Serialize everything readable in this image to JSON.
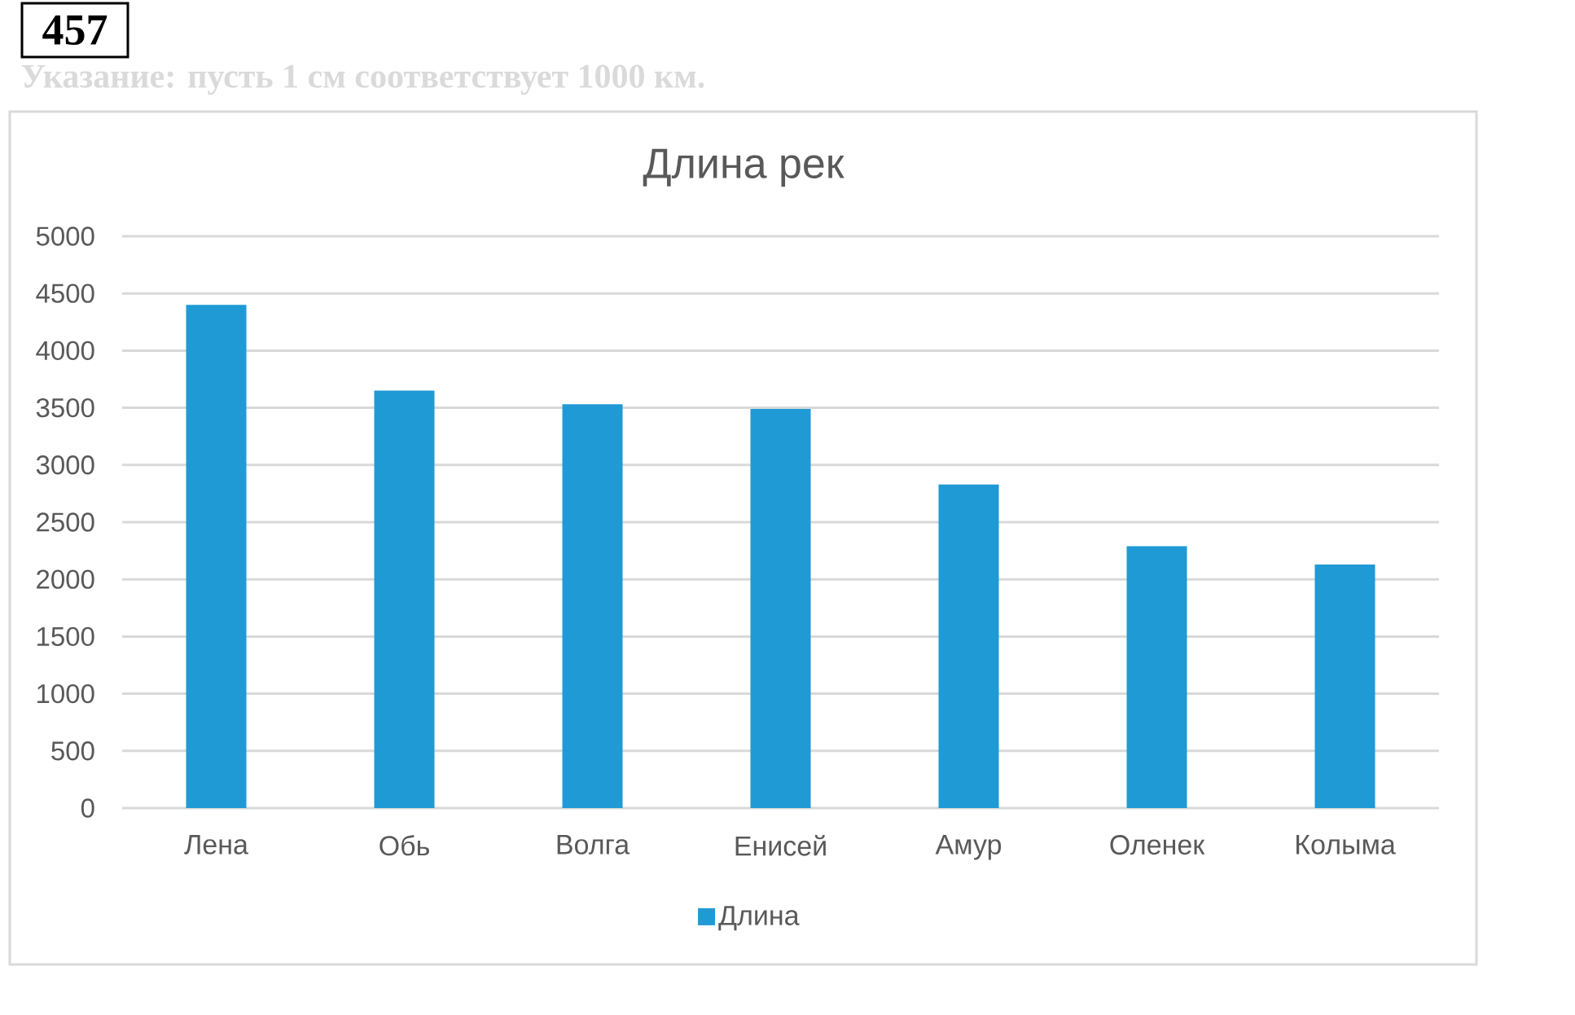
{
  "chart_data": {
    "type": "bar",
    "title": "Длина рек",
    "categories": [
      "Лена",
      "Обь",
      "Волга",
      "Енисей",
      "Амур",
      "Оленек",
      "Колыма"
    ],
    "series": [
      {
        "name": "Длина",
        "color": "#1f9ad5",
        "values": [
          4400,
          3650,
          3530,
          3490,
          2830,
          2290,
          2130
        ]
      }
    ],
    "ylim": [
      0,
      5000
    ],
    "yticks": [
      0,
      500,
      1000,
      1500,
      2000,
      2500,
      3000,
      3500,
      4000,
      4500,
      5000
    ],
    "grid": "y",
    "legend": "bottom",
    "annotations": [
      "457",
      "Указание: пусть 1 см соответствует 1000 км."
    ]
  }
}
